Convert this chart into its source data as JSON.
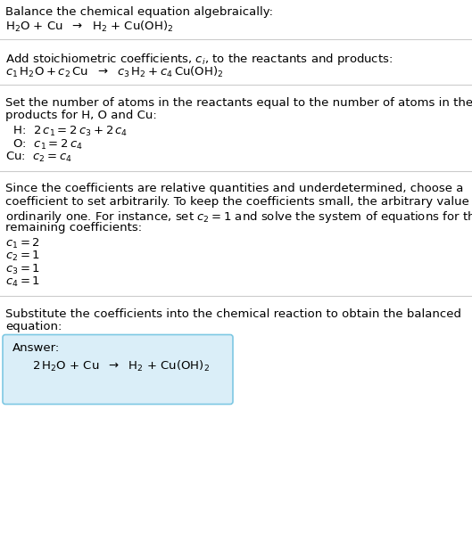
{
  "line1": "Balance the chemical equation algebraically:",
  "line2": "$\\mathregular{H_2O}$ + Cu  $\\rightarrow$  $\\mathregular{H_2}$ + $\\mathregular{Cu(OH)_2}$",
  "sec1_head": "Add stoichiometric coefficients, $c_i$, to the reactants and products:",
  "sec1_eq": "$c_1\\,\\mathregular{H_2O} + c_2\\,\\mathrm{Cu}$  $\\rightarrow$  $c_3\\,\\mathregular{H_2} + c_4\\,\\mathregular{Cu(OH)_2}$",
  "sec2_head1": "Set the number of atoms in the reactants equal to the number of atoms in the",
  "sec2_head2": "products for H, O and Cu:",
  "sec2_H": "  H:  $2\\,c_1 = 2\\,c_3 + 2\\,c_4$",
  "sec2_O": "  O:  $c_1 = 2\\,c_4$",
  "sec2_Cu": "Cu:  $c_2 = c_4$",
  "sec3_head1": "Since the coefficients are relative quantities and underdetermined, choose a",
  "sec3_head2": "coefficient to set arbitrarily. To keep the coefficients small, the arbitrary value is",
  "sec3_head3": "ordinarily one. For instance, set $c_2 = 1$ and solve the system of equations for the",
  "sec3_head4": "remaining coefficients:",
  "sec3_c1": "$c_1 = 2$",
  "sec3_c2": "$c_2 = 1$",
  "sec3_c3": "$c_3 = 1$",
  "sec3_c4": "$c_4 = 1$",
  "sec4_head1": "Substitute the coefficients into the chemical reaction to obtain the balanced",
  "sec4_head2": "equation:",
  "ans_label": "Answer:",
  "ans_eq": "$2\\,\\mathregular{H_2O}$ + Cu  $\\rightarrow$  $\\mathregular{H_2}$ + $\\mathregular{Cu(OH)_2}$",
  "answer_box_color": "#daeef8",
  "answer_box_edge": "#7ec8e3",
  "divider_color": "#cccccc",
  "text_color": "#000000",
  "bg_color": "#ffffff"
}
